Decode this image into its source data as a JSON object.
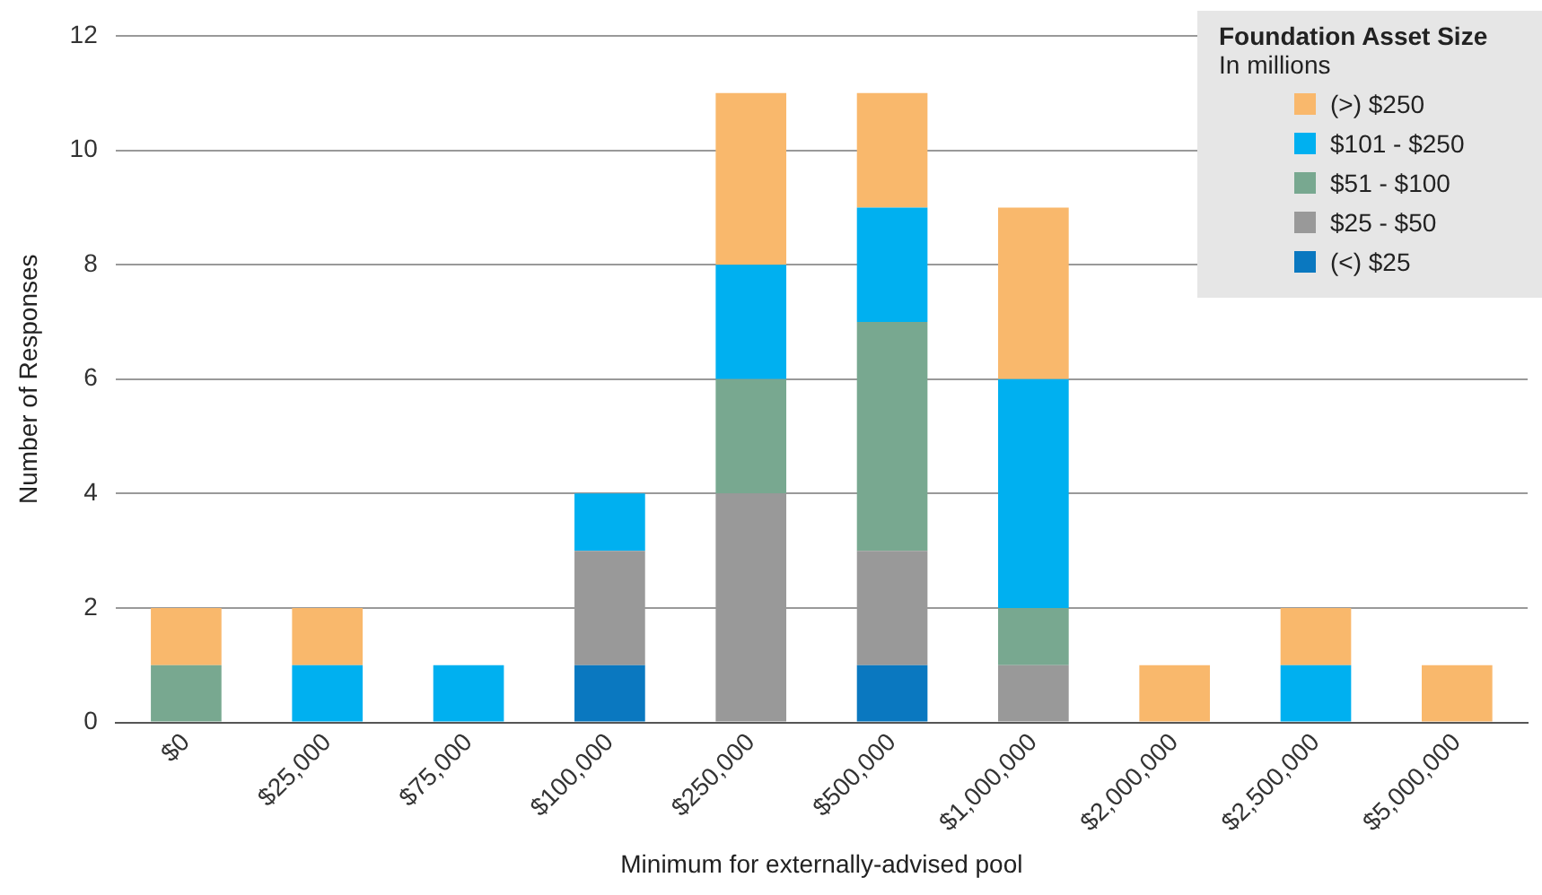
{
  "chart_data": {
    "type": "bar",
    "stacked": true,
    "xlabel": "Minimum for externally-advised pool",
    "ylabel": "Number of Responses",
    "categories": [
      "$0",
      "$25,000",
      "$75,000",
      "$100,000",
      "$250,000",
      "$500,000",
      "$1,000,000",
      "$2,000,000",
      "$2,500,000",
      "$5,000,000"
    ],
    "series": [
      {
        "name": "(<) $25",
        "color": "#0a78c0",
        "values": [
          0,
          0,
          0,
          1,
          0,
          1,
          0,
          0,
          0,
          0
        ]
      },
      {
        "name": "$25 - $50",
        "color": "#999999",
        "values": [
          0,
          0,
          0,
          2,
          4,
          2,
          1,
          0,
          0,
          0
        ]
      },
      {
        "name": "$51 - $100",
        "color": "#78a890",
        "values": [
          1,
          0,
          0,
          0,
          2,
          4,
          1,
          0,
          0,
          0
        ]
      },
      {
        "name": "$101 - $250",
        "color": "#00b0f0",
        "values": [
          0,
          1,
          1,
          1,
          2,
          2,
          4,
          0,
          1,
          0
        ]
      },
      {
        "name": "(>) $250",
        "color": "#f9b86c",
        "values": [
          1,
          1,
          0,
          0,
          3,
          2,
          3,
          1,
          1,
          1
        ]
      }
    ],
    "ylim": [
      0,
      12
    ],
    "yticks": [
      0,
      2,
      4,
      6,
      8,
      10,
      12
    ],
    "grid": "y",
    "legend": "top right",
    "legend_title": "Foundation Asset Size",
    "annotations": [
      "In millions"
    ]
  }
}
